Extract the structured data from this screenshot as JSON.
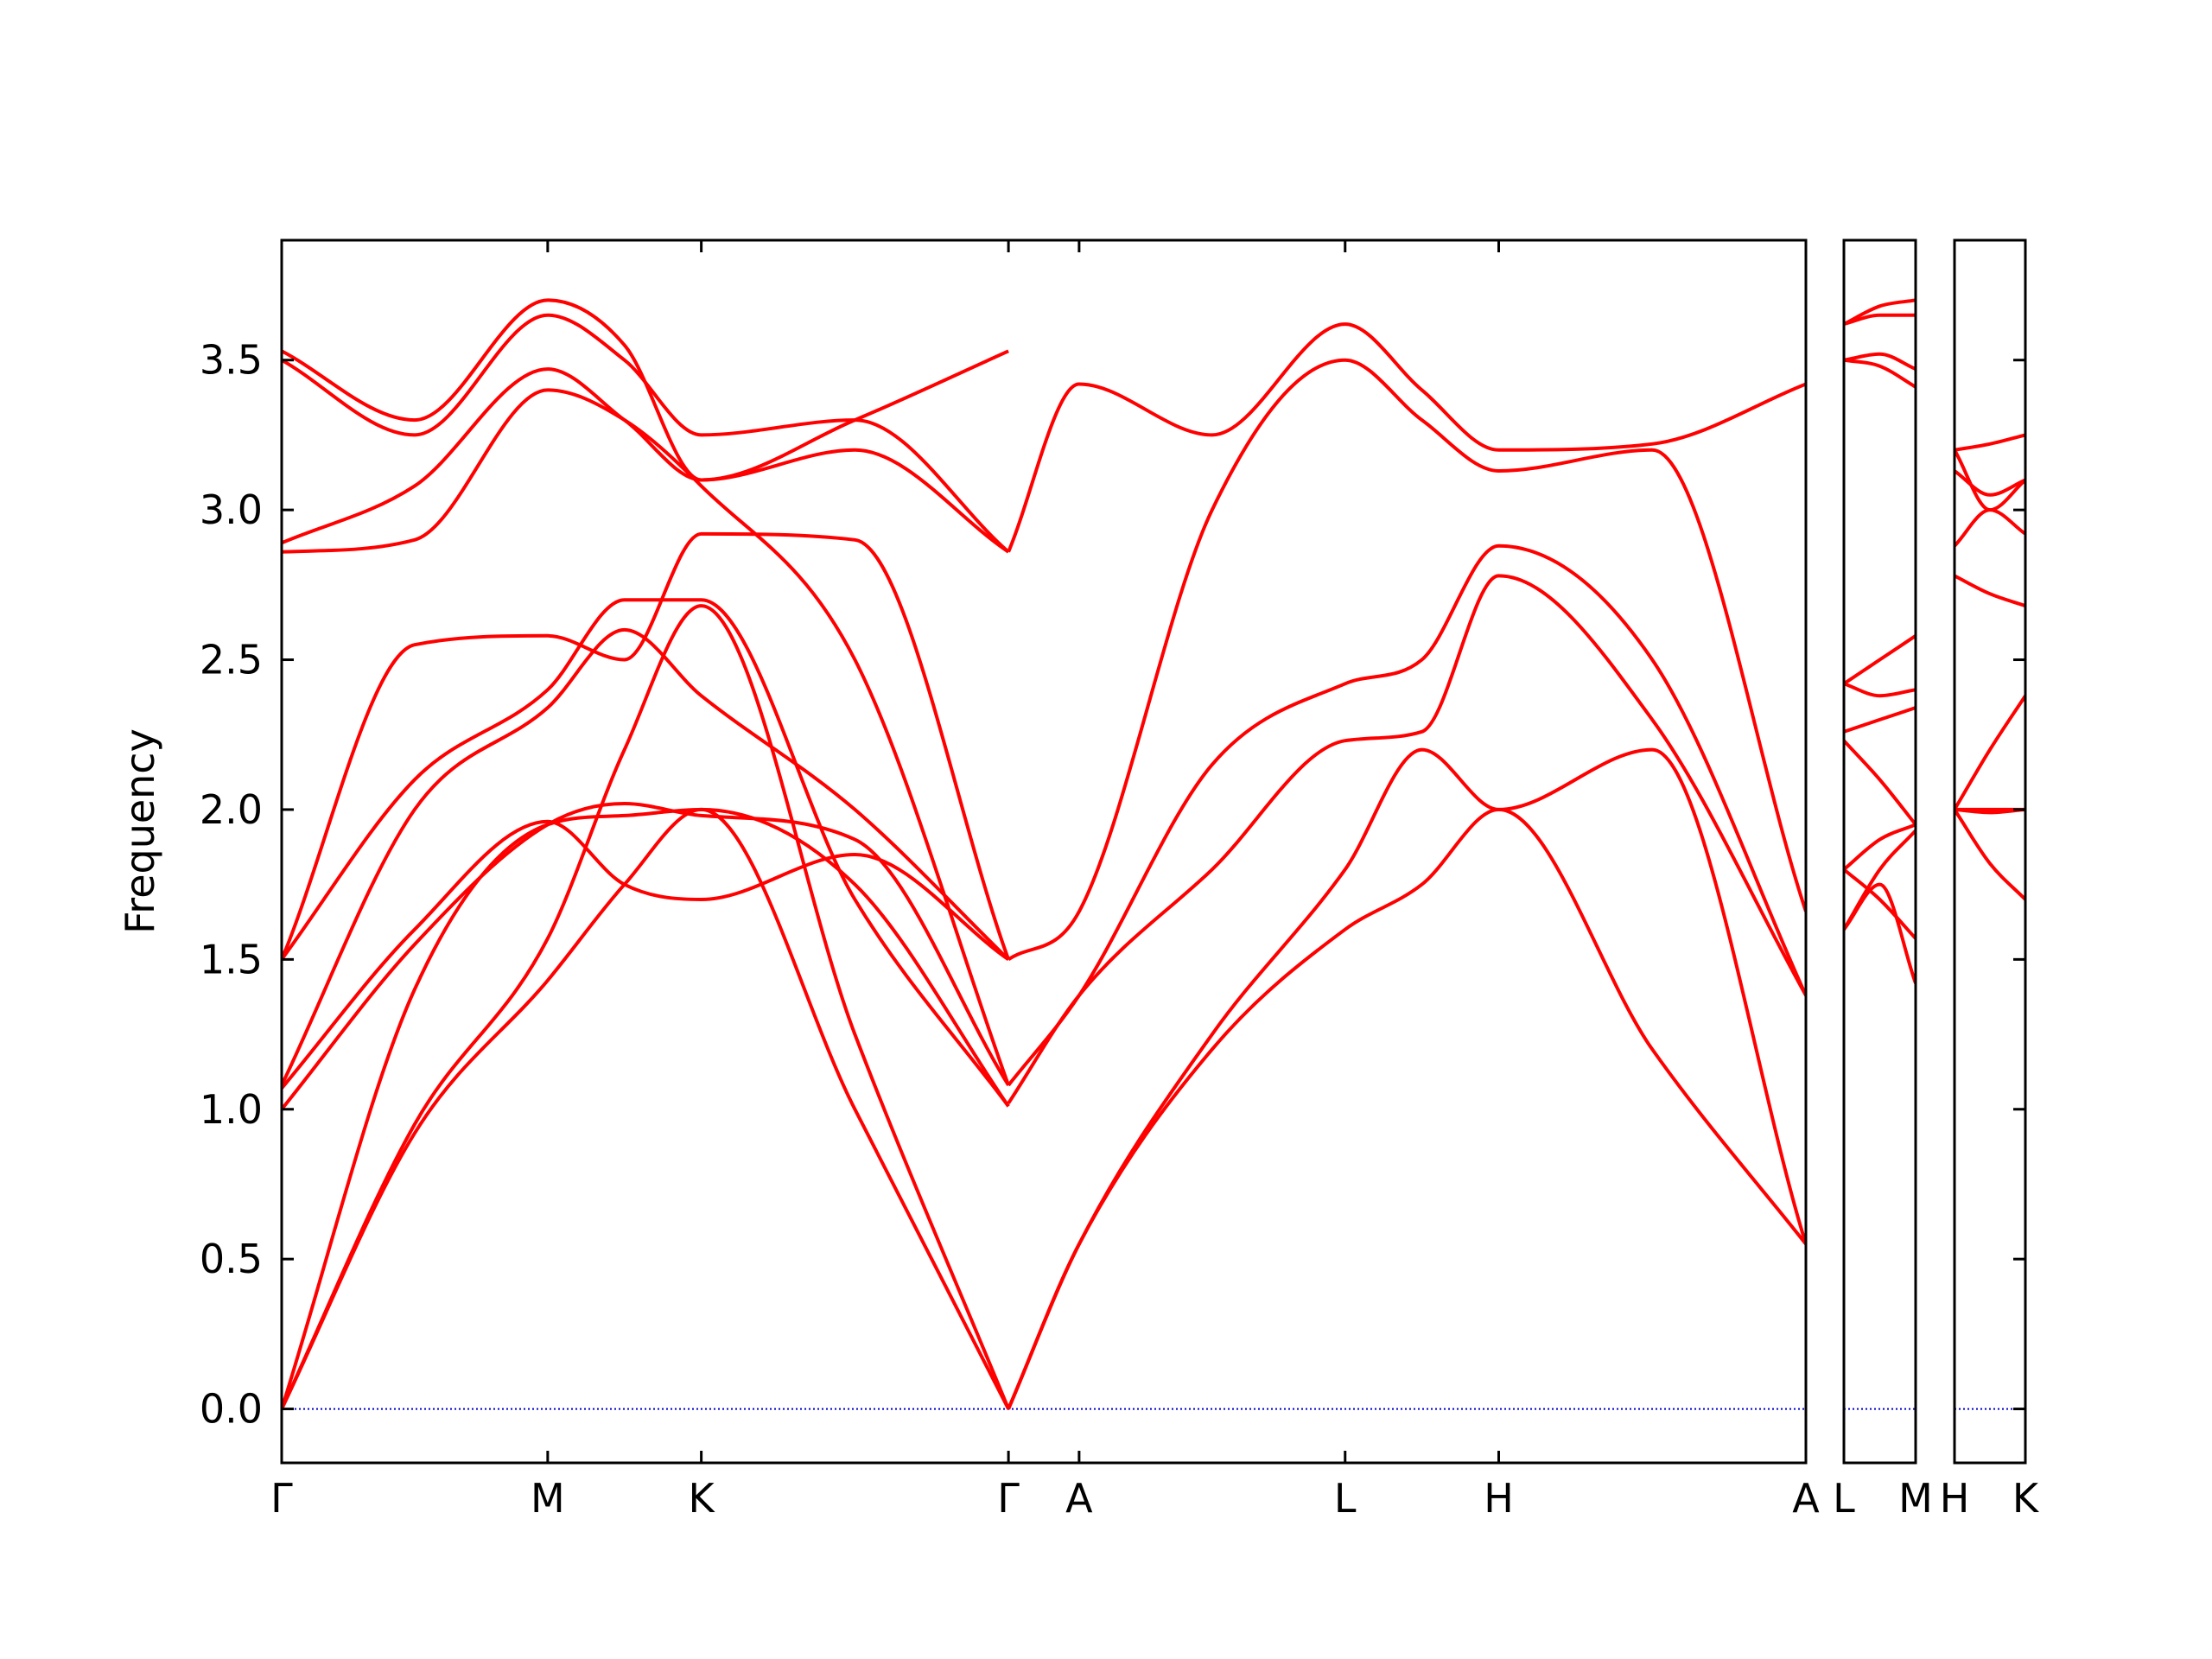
{
  "chart_data": {
    "type": "line",
    "title": "",
    "ylabel": "Frequency",
    "xlabel": "",
    "ylim": [
      -0.18,
      3.9
    ],
    "y_ticks": [
      0.0,
      0.5,
      1.0,
      1.5,
      2.0,
      2.5,
      3.0,
      3.5
    ],
    "y_tick_labels": [
      "0.0",
      "0.5",
      "1.0",
      "1.5",
      "2.0",
      "2.5",
      "3.0",
      "3.5"
    ],
    "zero_line": {
      "y": 0.0,
      "color": "#0000cc",
      "style": "dotted"
    },
    "colors": {
      "bands": "#ff0000",
      "frame": "#000000"
    },
    "grid": false,
    "panels": [
      {
        "kpoints": [
          "Γ",
          "M",
          "K",
          "Γ",
          "A",
          "L",
          "H",
          "A"
        ],
        "kpositions": [
          0.0,
          0.866,
          1.366,
          2.366,
          2.596,
          3.462,
          3.962,
          4.962
        ],
        "bands": [
          {
            "x": [
              0,
              0.433,
              0.866,
              1.116,
              1.366,
              1.866,
              2.366
            ],
            "y": [
              0,
              0.92,
              1.43,
              1.75,
              2.0,
              1.0,
              0
            ]
          },
          {
            "x": [
              0,
              0.433,
              0.866,
              1.116,
              1.366,
              1.866,
              2.366
            ],
            "y": [
              0,
              0.95,
              1.57,
              2.2,
              2.68,
              1.25,
              0
            ]
          },
          {
            "x": [
              0,
              0.433,
              0.866,
              1.116,
              1.366,
              1.866,
              2.366
            ],
            "y": [
              0,
              1.4,
              1.95,
              1.98,
              2.0,
              1.75,
              1.01
            ]
          },
          {
            "x": [
              0,
              0.433,
              0.866,
              1.116,
              1.366,
              1.866,
              2.366
            ],
            "y": [
              1.0,
              1.55,
              1.95,
              2.02,
              1.98,
              1.9,
              1.08
            ]
          },
          {
            "x": [
              0,
              0.433,
              0.866,
              1.116,
              1.366,
              1.866,
              2.366
            ],
            "y": [
              1.07,
              1.6,
              1.96,
              1.75,
              1.7,
              1.85,
              1.5
            ]
          },
          {
            "x": [
              0,
              0.433,
              0.866,
              1.116,
              1.366,
              1.866,
              2.366
            ],
            "y": [
              1.08,
              2.0,
              2.34,
              2.6,
              2.38,
              2.0,
              1.5
            ]
          },
          {
            "x": [
              0,
              0.433,
              0.866,
              1.116,
              1.366,
              1.866,
              2.366
            ],
            "y": [
              1.5,
              2.1,
              2.4,
              2.7,
              2.7,
              1.7,
              1.01
            ]
          },
          {
            "x": [
              0,
              0.433,
              0.866,
              1.116,
              1.366,
              1.866,
              2.366
            ],
            "y": [
              1.5,
              2.55,
              2.58,
              2.5,
              2.92,
              2.9,
              1.5
            ]
          },
          {
            "x": [
              0,
              0.433,
              0.866,
              1.116,
              1.366,
              1.866,
              2.366
            ],
            "y": [
              2.86,
              2.9,
              3.4,
              3.3,
              3.08,
              2.5,
              1.08
            ]
          },
          {
            "x": [
              0,
              0.433,
              0.866,
              1.116,
              1.366,
              1.866,
              2.366
            ],
            "y": [
              2.89,
              3.08,
              3.47,
              3.3,
              3.1,
              3.2,
              2.86
            ]
          },
          {
            "x": [
              0,
              0.433,
              0.866,
              1.116,
              1.366,
              1.866,
              2.366
            ],
            "y": [
              3.5,
              3.25,
              3.65,
              3.5,
              3.25,
              3.3,
              2.86
            ]
          },
          {
            "x": [
              0,
              0.433,
              0.866,
              1.116,
              1.366,
              1.866,
              2.366
            ],
            "y": [
              3.53,
              3.3,
              3.7,
              3.55,
              3.1,
              3.3,
              3.53
            ]
          },
          {
            "x": [
              2.366,
              2.596,
              3.029,
              3.462,
              3.712,
              3.962,
              4.462,
              4.962
            ],
            "y": [
              0,
              0.55,
              1.2,
              1.6,
              1.75,
              2.0,
              1.2,
              0.55
            ]
          },
          {
            "x": [
              2.366,
              2.596,
              3.029,
              3.462,
              3.712,
              3.962,
              4.462,
              4.962
            ],
            "y": [
              0,
              0.55,
              1.25,
              1.8,
              2.2,
              2.0,
              2.2,
              0.55
            ]
          },
          {
            "x": [
              2.366,
              2.596,
              3.029,
              3.462,
              3.712,
              3.962,
              4.462,
              4.962
            ],
            "y": [
              1.02,
              1.38,
              1.8,
              2.23,
              2.26,
              2.78,
              2.3,
              1.38
            ]
          },
          {
            "x": [
              2.366,
              2.596,
              3.029,
              3.462,
              3.712,
              3.962,
              4.462,
              4.962
            ],
            "y": [
              1.08,
              1.38,
              2.15,
              2.42,
              2.5,
              2.88,
              2.5,
              1.38
            ]
          },
          {
            "x": [
              2.366,
              2.596,
              3.029,
              3.462,
              3.712,
              3.962,
              4.462,
              4.962
            ],
            "y": [
              1.5,
              1.66,
              3.0,
              3.5,
              3.3,
              3.13,
              3.2,
              1.66
            ]
          },
          {
            "x": [
              2.366,
              2.596,
              3.029,
              3.462,
              3.712,
              3.962,
              4.462,
              4.962
            ],
            "y": [
              2.86,
              3.42,
              3.25,
              3.62,
              3.4,
              3.2,
              3.22,
              3.42
            ]
          }
        ]
      },
      {
        "kpoints": [
          "L",
          "M"
        ],
        "kpositions": [
          0.0,
          0.5
        ],
        "bands": [
          {
            "x": [
              0,
              0.25,
              0.5
            ],
            "y": [
              1.6,
              1.8,
              1.93
            ]
          },
          {
            "x": [
              0,
              0.25,
              0.5
            ],
            "y": [
              1.6,
              1.75,
              1.42
            ]
          },
          {
            "x": [
              0,
              0.25,
              0.5
            ],
            "y": [
              1.8,
              1.7,
              1.57
            ]
          },
          {
            "x": [
              0,
              0.25,
              0.5
            ],
            "y": [
              1.8,
              1.9,
              1.95
            ]
          },
          {
            "x": [
              0,
              0.25,
              0.5
            ],
            "y": [
              2.23,
              2.1,
              1.95
            ]
          },
          {
            "x": [
              0,
              0.25,
              0.5
            ],
            "y": [
              2.26,
              2.3,
              2.34
            ]
          },
          {
            "x": [
              0,
              0.25,
              0.5
            ],
            "y": [
              2.42,
              2.38,
              2.4
            ]
          },
          {
            "x": [
              0,
              0.25,
              0.5
            ],
            "y": [
              2.42,
              2.5,
              2.58
            ]
          },
          {
            "x": [
              0,
              0.25,
              0.5
            ],
            "y": [
              3.5,
              3.48,
              3.41
            ]
          },
          {
            "x": [
              0,
              0.25,
              0.5
            ],
            "y": [
              3.5,
              3.52,
              3.47
            ]
          },
          {
            "x": [
              0,
              0.25,
              0.5
            ],
            "y": [
              3.62,
              3.65,
              3.65
            ]
          },
          {
            "x": [
              0,
              0.25,
              0.5
            ],
            "y": [
              3.62,
              3.68,
              3.7
            ]
          }
        ]
      },
      {
        "kpoints": [
          "H",
          "K"
        ],
        "kpositions": [
          0.0,
          0.5
        ],
        "bands": [
          {
            "x": [
              0,
              0.25,
              0.5
            ],
            "y": [
              2.0,
              1.82,
              1.7
            ]
          },
          {
            "x": [
              0,
              0.25,
              0.5
            ],
            "y": [
              2.0,
              1.99,
              2.0
            ]
          },
          {
            "x": [
              0,
              0.25,
              0.5
            ],
            "y": [
              2.0,
              2.0,
              2.0
            ]
          },
          {
            "x": [
              0,
              0.25,
              0.5
            ],
            "y": [
              2.0,
              2.2,
              2.38
            ]
          },
          {
            "x": [
              0,
              0.25,
              0.5
            ],
            "y": [
              2.78,
              2.72,
              2.68
            ]
          },
          {
            "x": [
              0,
              0.25,
              0.5
            ],
            "y": [
              2.88,
              3.0,
              2.92
            ]
          },
          {
            "x": [
              0,
              0.25,
              0.5
            ],
            "y": [
              3.13,
              3.05,
              3.1
            ]
          },
          {
            "x": [
              0,
              0.25,
              0.5
            ],
            "y": [
              3.2,
              3.0,
              3.1
            ]
          },
          {
            "x": [
              0,
              0.25,
              0.5
            ],
            "y": [
              3.2,
              3.22,
              3.25
            ]
          }
        ]
      }
    ]
  }
}
